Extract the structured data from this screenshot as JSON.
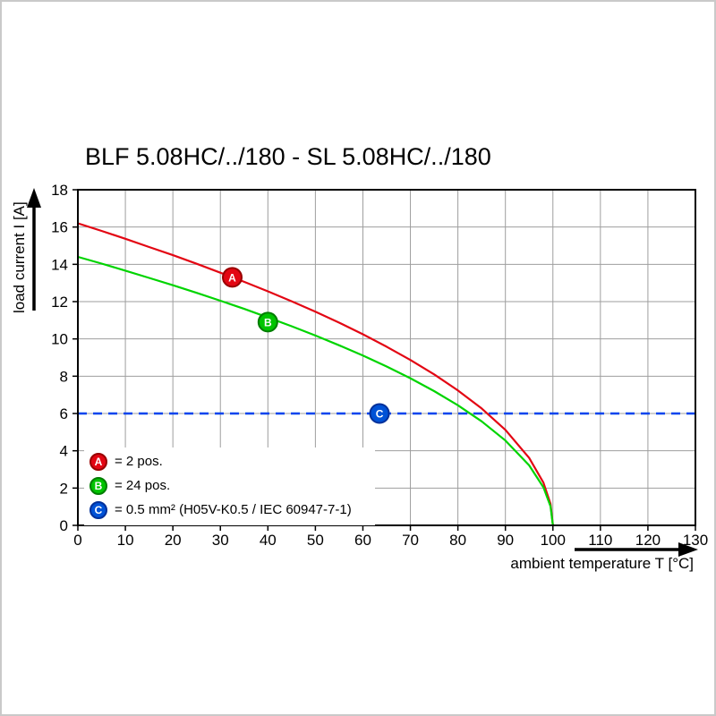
{
  "chart_data": {
    "type": "line",
    "title": "BLF 5.08HC/../180 - SL 5.08HC/../180",
    "xlabel": "ambient temperature T [°C]",
    "ylabel": "load current I [A]",
    "xlim": [
      0,
      130
    ],
    "ylim": [
      0,
      18
    ],
    "xticks": [
      0,
      10,
      20,
      30,
      40,
      50,
      60,
      70,
      80,
      90,
      100,
      110,
      120,
      130
    ],
    "yticks": [
      0,
      2,
      4,
      6,
      8,
      10,
      12,
      14,
      16,
      18
    ],
    "grid": true,
    "legend_position": "bottom-left-inside",
    "colors": {
      "grid": "#9e9e9e",
      "axis": "#000000",
      "background": "#ffffff"
    },
    "series": [
      {
        "name": "A",
        "legend": "= 2 pos.",
        "color": "#e30613",
        "marker_fill": "#e30613",
        "marker_stroke": "#990000",
        "marker_at": [
          32.5,
          13.3
        ],
        "points": [
          [
            0,
            16.2
          ],
          [
            5,
            15.79
          ],
          [
            10,
            15.37
          ],
          [
            15,
            14.93
          ],
          [
            20,
            14.49
          ],
          [
            25,
            14.03
          ],
          [
            30,
            13.55
          ],
          [
            35,
            13.06
          ],
          [
            40,
            12.55
          ],
          [
            45,
            12.02
          ],
          [
            50,
            11.46
          ],
          [
            55,
            10.87
          ],
          [
            60,
            10.25
          ],
          [
            65,
            9.58
          ],
          [
            70,
            8.87
          ],
          [
            75,
            8.1
          ],
          [
            80,
            7.24
          ],
          [
            85,
            6.27
          ],
          [
            90,
            5.12
          ],
          [
            95,
            3.62
          ],
          [
            98,
            2.29
          ],
          [
            99.5,
            1.15
          ],
          [
            100,
            0
          ]
        ]
      },
      {
        "name": "B",
        "legend": "= 24 pos.",
        "color": "#00d400",
        "marker_fill": "#00c400",
        "marker_stroke": "#007d00",
        "marker_at": [
          40,
          10.9
        ],
        "points": [
          [
            0,
            14.4
          ],
          [
            5,
            14.04
          ],
          [
            10,
            13.66
          ],
          [
            15,
            13.27
          ],
          [
            20,
            12.88
          ],
          [
            25,
            12.47
          ],
          [
            30,
            12.05
          ],
          [
            35,
            11.61
          ],
          [
            40,
            11.15
          ],
          [
            45,
            10.68
          ],
          [
            50,
            10.18
          ],
          [
            55,
            9.66
          ],
          [
            60,
            9.11
          ],
          [
            65,
            8.52
          ],
          [
            70,
            7.89
          ],
          [
            75,
            7.2
          ],
          [
            80,
            6.44
          ],
          [
            85,
            5.58
          ],
          [
            90,
            4.55
          ],
          [
            95,
            3.22
          ],
          [
            98,
            2.04
          ],
          [
            99.5,
            1.02
          ],
          [
            100,
            0
          ]
        ]
      },
      {
        "name": "C",
        "legend": "= 0.5 mm² (H05V-K0.5 / IEC 60947-7-1)",
        "color": "#0044ee",
        "marker_fill": "#0052d6",
        "marker_stroke": "#002f99",
        "marker_at": [
          63.5,
          6
        ],
        "hline": 6,
        "dashed": true
      }
    ]
  }
}
